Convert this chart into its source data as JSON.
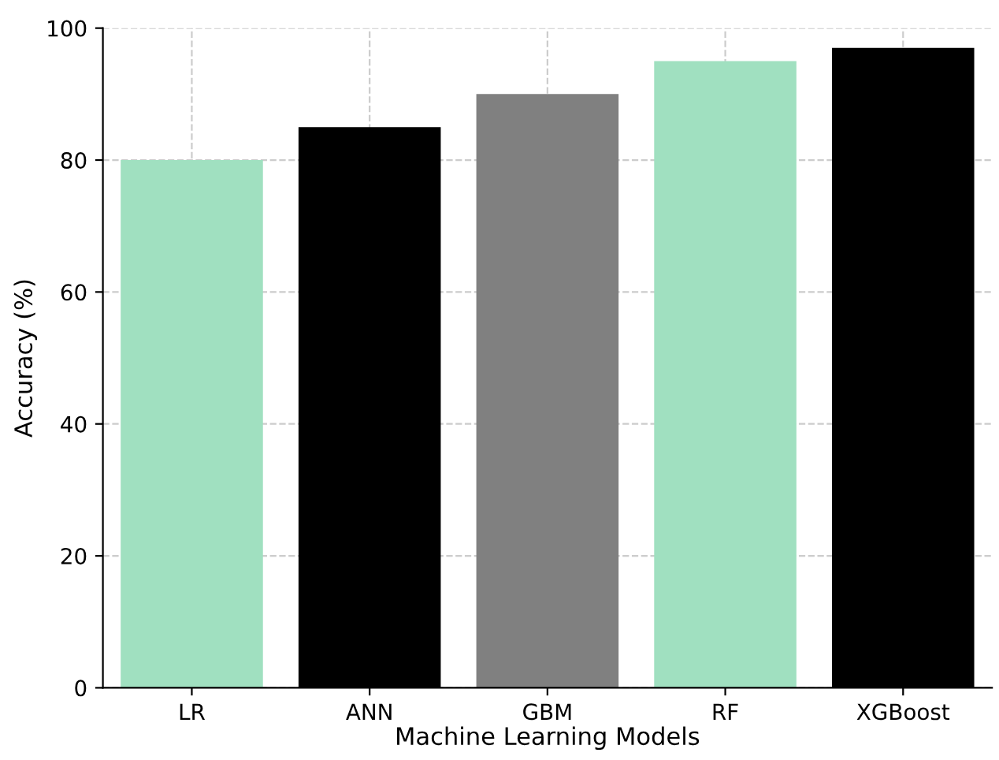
{
  "chart_data": {
    "type": "bar",
    "xlabel": "Machine Learning Models",
    "ylabel": "Accuracy (%)",
    "categories": [
      "LR",
      "ANN",
      "GBM",
      "RF",
      "XGBoost"
    ],
    "values": [
      80,
      85,
      90,
      95,
      97
    ],
    "colors": [
      "#a0e0c0",
      "#000000",
      "#808080",
      "#a0e0c0",
      "#000000"
    ],
    "ylim": [
      0,
      100
    ],
    "yticks": [
      0,
      20,
      40,
      60,
      80,
      100
    ],
    "grid": true
  }
}
